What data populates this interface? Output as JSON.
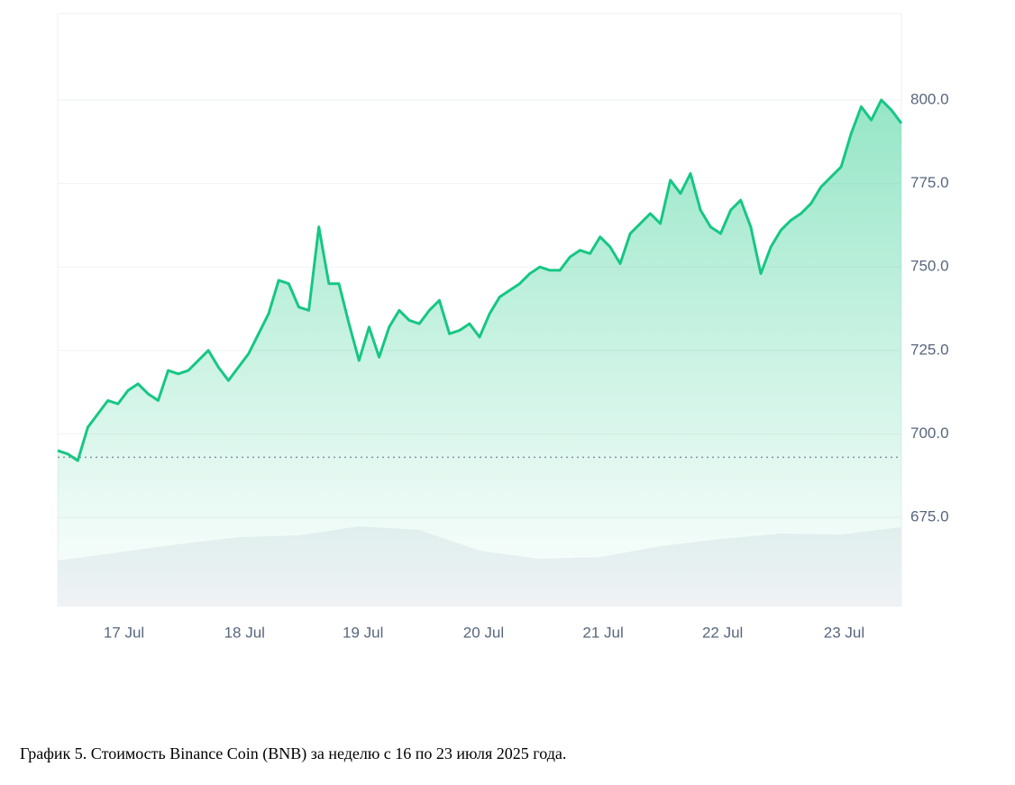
{
  "chart_data": {
    "type": "line",
    "caption": "График 5. Стоимость Binance Coin (BNB) за неделю с 16 по 23 июля 2025 года.",
    "series": [
      {
        "name": "BNB",
        "color": "#16c784",
        "values": [
          695,
          694,
          692,
          702,
          706,
          710,
          709,
          713,
          715,
          712,
          710,
          719,
          718,
          719,
          722,
          725,
          720,
          716,
          720,
          724,
          730,
          736,
          746,
          745,
          738,
          737,
          762,
          745,
          745,
          733,
          722,
          732,
          723,
          732,
          737,
          734,
          733,
          737,
          740,
          730,
          731,
          733,
          729,
          736,
          741,
          743,
          745,
          748,
          750,
          749,
          749,
          753,
          755,
          754,
          759,
          756,
          751,
          760,
          763,
          766,
          763,
          776,
          772,
          778,
          767,
          762,
          760,
          767,
          770,
          762,
          748,
          756,
          761,
          764,
          766,
          769,
          774,
          777,
          780,
          790,
          798,
          794,
          800,
          797,
          793
        ]
      }
    ],
    "baseline": 693,
    "volume": {
      "color": "#eff2f5",
      "x": [
        0,
        6,
        12,
        18,
        24,
        30,
        36,
        42,
        48,
        54,
        60,
        66,
        72,
        78,
        84
      ],
      "values": [
        51,
        60,
        69,
        77,
        79,
        89,
        85,
        62,
        53,
        55,
        67,
        75,
        81,
        80,
        88
      ],
      "ylim": [
        0,
        100
      ]
    },
    "xlim": [
      0,
      84
    ],
    "xticks": [
      {
        "value": 6.6,
        "label": "17 Jul"
      },
      {
        "value": 18.6,
        "label": "18 Jul"
      },
      {
        "value": 30.4,
        "label": "19 Jul"
      },
      {
        "value": 42.4,
        "label": "20 Jul"
      },
      {
        "value": 54.3,
        "label": "21 Jul"
      },
      {
        "value": 66.2,
        "label": "22 Jul"
      },
      {
        "value": 78.3,
        "label": "23 Jul"
      }
    ],
    "ylim": [
      648.3,
      825.9
    ],
    "yticks": [
      {
        "value": 675,
        "label": "675.0"
      },
      {
        "value": 700,
        "label": "700.0"
      },
      {
        "value": 725,
        "label": "725.0"
      },
      {
        "value": 750,
        "label": "750.0"
      },
      {
        "value": 775,
        "label": "775.0"
      },
      {
        "value": 800,
        "label": "800.0"
      }
    ],
    "grid": true
  }
}
